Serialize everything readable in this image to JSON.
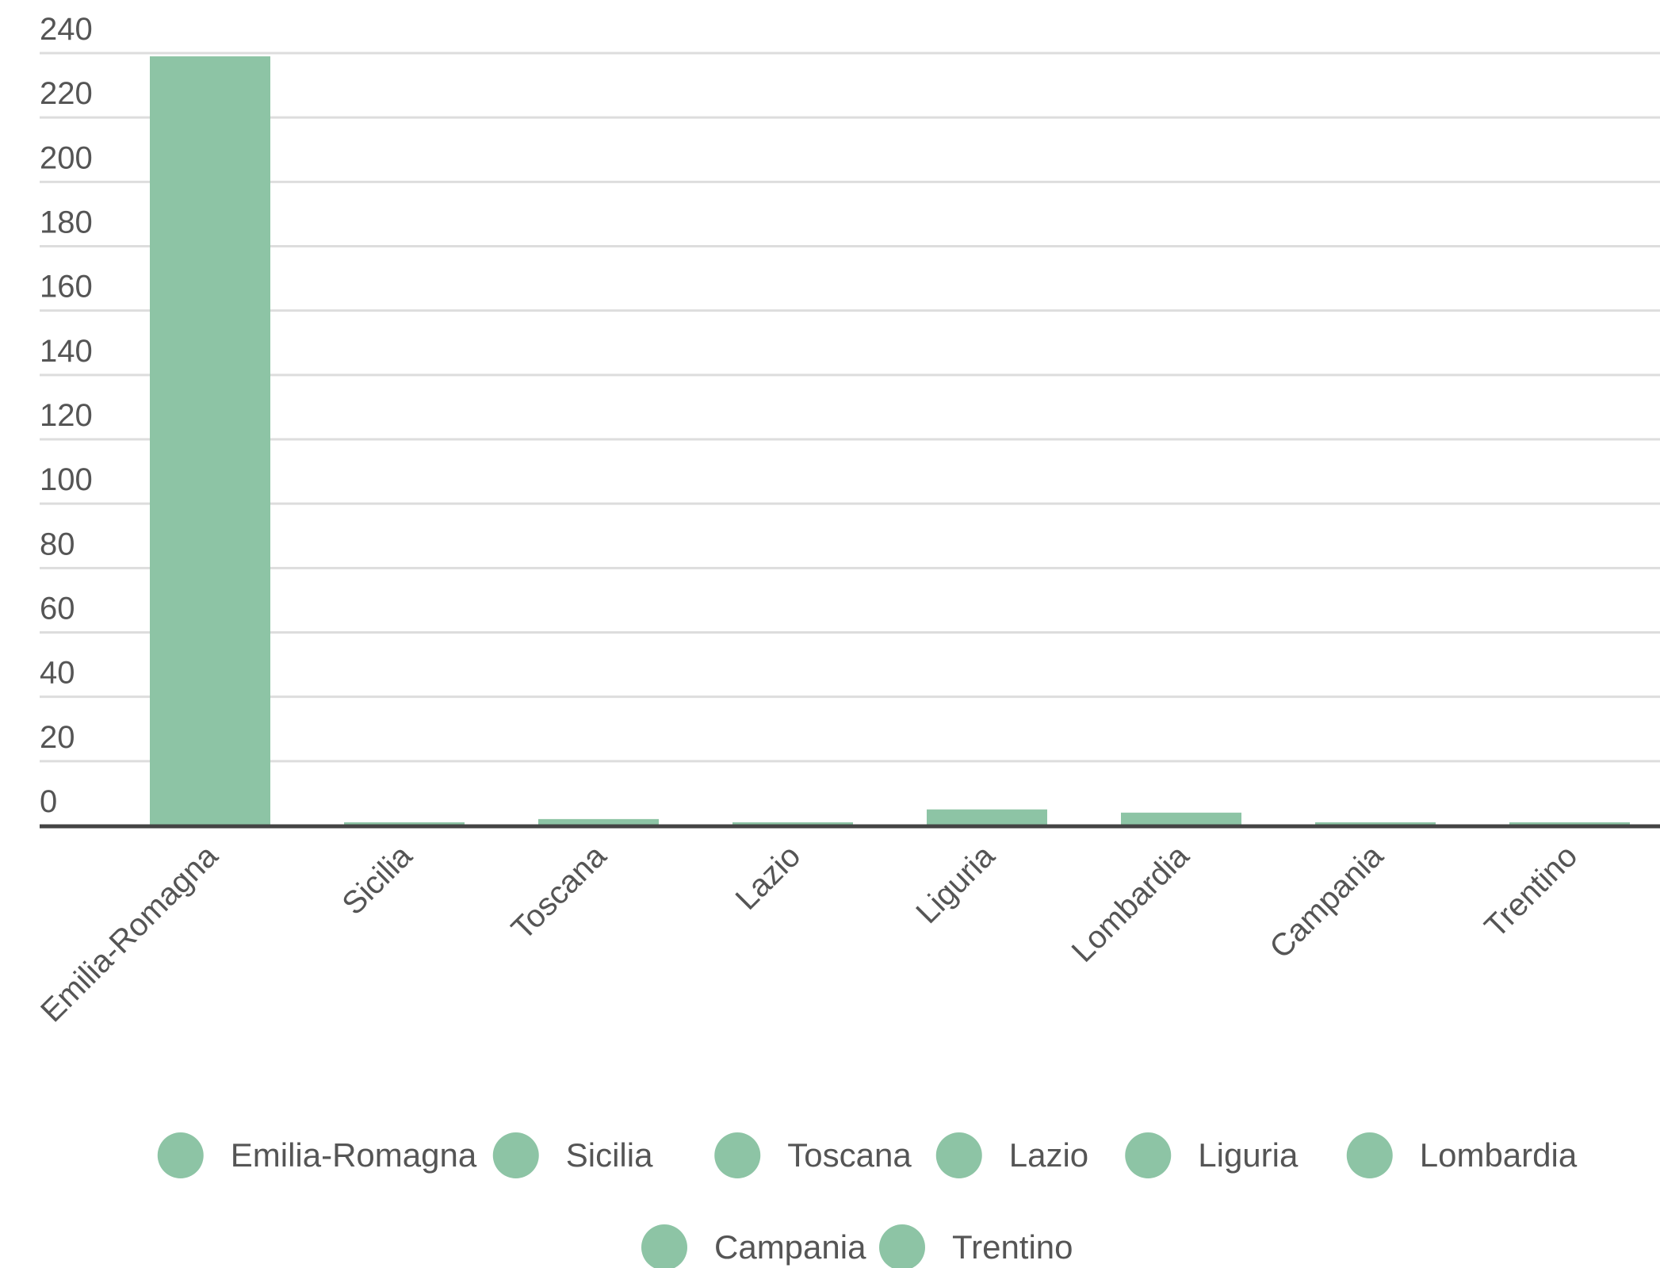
{
  "chart_data": {
    "type": "bar",
    "title": "",
    "xlabel": "",
    "ylabel": "",
    "categories": [
      "Emilia-Romagna",
      "Sicilia",
      "Toscana",
      "Lazio",
      "Liguria",
      "Lombardia",
      "Campania",
      "Trentino"
    ],
    "values": [
      239,
      1,
      2,
      1,
      5,
      4,
      1,
      1
    ],
    "ylim": [
      0,
      240
    ],
    "yticks": [
      "0",
      "20",
      "40",
      "60",
      "80",
      "100",
      "120",
      "140",
      "160",
      "180",
      "200",
      "220",
      "240"
    ],
    "grid": true,
    "legend": {
      "placement": "bottom",
      "entries": [
        "Emilia-Romagna",
        "Sicilia",
        "Toscana",
        "Lazio",
        "Liguria",
        "Lombardia",
        "Campania",
        "Trentino"
      ]
    },
    "colors": {
      "bar": "#8dc4a5",
      "grid": "#dddddd",
      "baseline": "#444444",
      "text": "#555555"
    }
  }
}
